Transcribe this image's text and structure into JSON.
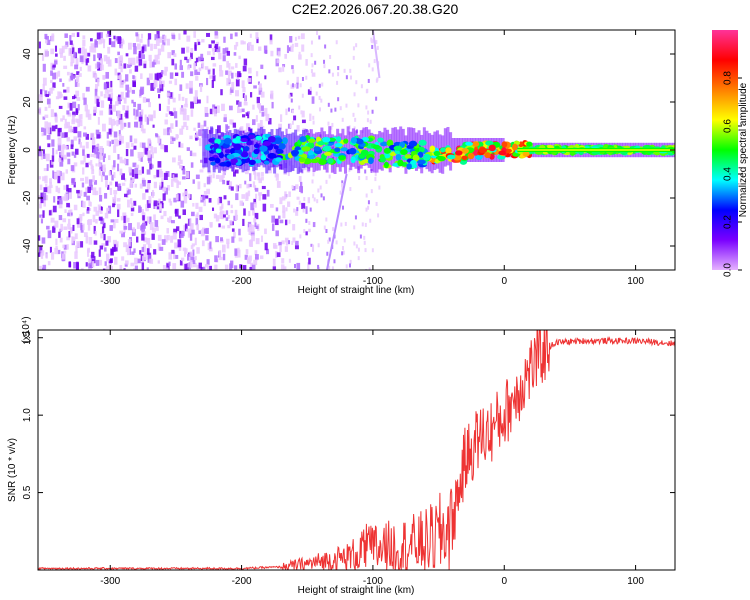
{
  "figure_title": "C2E2.2026.067.20.38.G20",
  "chart_data": [
    {
      "type": "heatmap",
      "title": "",
      "xlabel": "Height of straight line (km)",
      "ylabel": "Frequency (Hz)",
      "xlim": [
        -355,
        130
      ],
      "ylim": [
        -50,
        50
      ],
      "xticks": [
        -300,
        -200,
        -100,
        0,
        100
      ],
      "yticks": [
        -40,
        -20,
        0,
        20,
        40
      ],
      "colorbar": {
        "label": "Normalized spectral amplitude",
        "range": [
          0,
          1
        ],
        "ticks": [
          "0.0",
          "0.2",
          "0.4",
          "0.6",
          "0.8"
        ],
        "tick_values": [
          0.0,
          0.2,
          0.4,
          0.6,
          0.8
        ],
        "stops": [
          "#e6b3ff",
          "#7a00ff",
          "#0000ff",
          "#00ffff",
          "#00ff00",
          "#ffff00",
          "#ff8000",
          "#ff0000",
          "#ff3399"
        ]
      },
      "description_features": {
        "noise_region_x": [
          -355,
          -165
        ],
        "carrier_line_freq_hz": 0,
        "faint_drift_line": {
          "x_start": -120,
          "y_start": -10,
          "x_end": -135,
          "y_end": -50
        }
      }
    },
    {
      "type": "line",
      "title": "",
      "xlabel": "Height of straight line (km)",
      "ylabel": "SNR (10 * v/v)",
      "scale_label": "(x10⁴)",
      "xlim": [
        -355,
        130
      ],
      "ylim": [
        0,
        1.55
      ],
      "xticks": [
        -300,
        -200,
        -100,
        0,
        100
      ],
      "yticks": [
        0.5,
        1.0,
        1.5
      ],
      "ytick_labels": [
        "0.5",
        "1.0",
        "1.5"
      ],
      "color": "#ee3333",
      "series": [
        {
          "name": "SNR",
          "x": [
            -355,
            -300,
            -250,
            -200,
            -170,
            -150,
            -120,
            -100,
            -80,
            -60,
            -50,
            -40,
            -30,
            -20,
            -10,
            0,
            10,
            20,
            30,
            40,
            60,
            80,
            100,
            120,
            130
          ],
          "values": [
            0.01,
            0.01,
            0.01,
            0.01,
            0.02,
            0.04,
            0.08,
            0.14,
            0.15,
            0.18,
            0.22,
            0.3,
            0.7,
            0.85,
            0.9,
            1.0,
            1.15,
            1.3,
            1.42,
            1.47,
            1.48,
            1.48,
            1.48,
            1.47,
            1.46
          ]
        }
      ]
    }
  ]
}
